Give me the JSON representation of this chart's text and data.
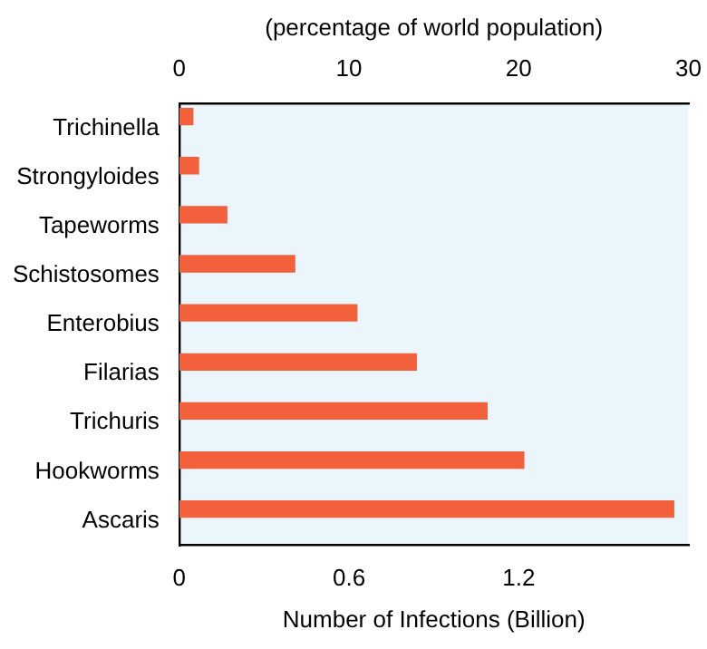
{
  "chart_data": {
    "type": "bar",
    "orientation": "horizontal",
    "categories": [
      "Trichinella",
      "Strongyloides",
      "Tapeworms",
      "Schistosomes",
      "Enterobius",
      "Filarias",
      "Trichuris",
      "Hookworms",
      "Ascaris"
    ],
    "values": [
      0.05,
      0.07,
      0.17,
      0.41,
      0.63,
      0.84,
      1.09,
      1.22,
      1.75
    ],
    "color": "#f2603c",
    "xlim": [
      0,
      1.8
    ],
    "xticks": [
      0,
      0.6,
      1.2
    ],
    "x2lim": [
      0,
      30
    ],
    "x2ticks": [
      0,
      10,
      20,
      30
    ],
    "xlabel": "Number of Infections (Billion)",
    "x2label": "(percentage of world population)",
    "grid": false,
    "legend": false
  }
}
